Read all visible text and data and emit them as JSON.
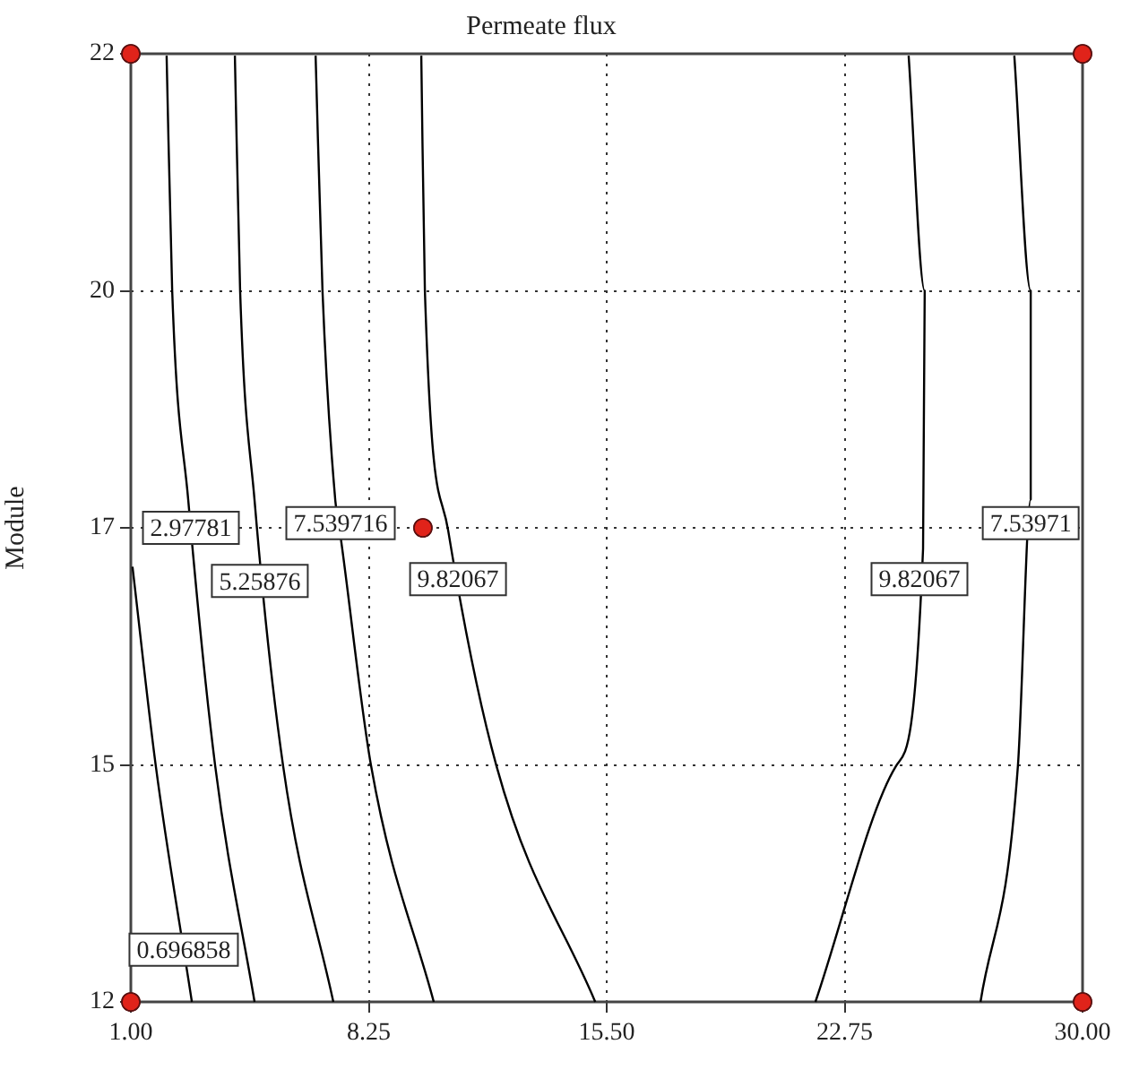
{
  "chart_data": {
    "type": "line",
    "title": "Permeate flux",
    "ylabel": "Module",
    "xlim": [
      1,
      30
    ],
    "ylim": [
      12,
      22
    ],
    "xticks": [
      {
        "value": 1,
        "label": "1.00"
      },
      {
        "value": 8.25,
        "label": "8.25"
      },
      {
        "value": 15.5,
        "label": "15.50"
      },
      {
        "value": 22.75,
        "label": "22.75"
      },
      {
        "value": 30,
        "label": "30.00"
      }
    ],
    "yticks": [
      12,
      {
        "value": 14.5,
        "label": "15"
      },
      17,
      {
        "value": 19.5,
        "label": "20"
      },
      22
    ],
    "grid": true,
    "legend": false,
    "series": [
      {
        "color": "#000000",
        "x": [
          1.05,
          1.76,
          2.86
        ],
        "values": [
          16.59,
          14.49,
          12
        ]
      },
      {
        "color": "#000000",
        "x": [
          2.09,
          2.26,
          2.75,
          3.57,
          4.77
        ],
        "values": [
          21.98,
          19.5,
          17.29,
          14.49,
          12
        ]
      },
      {
        "color": "#000000",
        "x": [
          4.17,
          4.33,
          4.77,
          5.64,
          7.17
        ],
        "values": [
          21.98,
          19.5,
          17.29,
          14.49,
          12
        ]
      },
      {
        "color": "#000000",
        "x": [
          6.63,
          6.84,
          7.23,
          7.39,
          8.32,
          10.23
        ],
        "values": [
          21.98,
          19.5,
          17.29,
          16.91,
          14.49,
          12
        ]
      },
      {
        "color": "#000000",
        "x": [
          9.85,
          9.96,
          10.67,
          12.14,
          15.15
        ],
        "values": [
          21.98,
          19.5,
          16.97,
          14.49,
          12
        ]
      },
      {
        "color": "#000000",
        "x": [
          24.7,
          25.19,
          25.14,
          24.32,
          21.86
        ],
        "values": [
          21.98,
          19.5,
          16.78,
          14.49,
          12
        ]
      },
      {
        "color": "#000000",
        "x": [
          27.92,
          28.42,
          28.42,
          28.03,
          26.89
        ],
        "values": [
          21.98,
          19.5,
          17.3,
          14.49,
          12
        ]
      },
      {
        "type": "scatter",
        "marker": "circle",
        "color": "#e0231a",
        "x": [
          1,
          1,
          30,
          30,
          9.9
        ],
        "values": [
          12,
          22,
          12,
          22,
          17
        ]
      }
    ],
    "annotations": [
      {
        "text": "2.97781",
        "x": 2.83,
        "y": 17
      },
      {
        "text": "5.25876",
        "x": 4.93,
        "y": 16.44
      },
      {
        "text": "7.539716",
        "x": 7.39,
        "y": 17.05
      },
      {
        "text": "9.82067",
        "x": 10.97,
        "y": 16.46
      },
      {
        "text": "9.82067",
        "x": 25.03,
        "y": 16.46
      },
      {
        "text": "7.53971",
        "x": 28.42,
        "y": 17.05
      },
      {
        "text": "0.696858",
        "x": 2.61,
        "y": 12.55
      }
    ]
  }
}
